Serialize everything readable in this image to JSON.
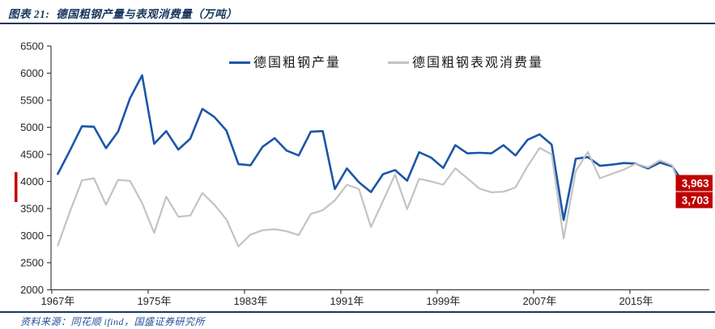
{
  "header": {
    "title": "图表 21:  德国粗钢产量与表观消费量（万吨）"
  },
  "footer": {
    "source": "资料来源：同花顺 ifind，国盛证券研究所"
  },
  "colors": {
    "title_blue": "#17375e",
    "rule_blue": "#17375e",
    "axis": "#404040",
    "tick_label": "#262626",
    "production_blue": "#1c56a8",
    "consumption_gray": "#c3c3c3",
    "end_label_bg": "#c00000",
    "end_label_text": "#ffffff",
    "accent_bar_red": "#c00000"
  },
  "chart_data": {
    "type": "line",
    "title": "德国粗钢产量与表观消费量（万吨）",
    "unit": "万吨",
    "grid": false,
    "legend_position": "top-center",
    "ylim": [
      2000,
      6500
    ],
    "y_ticks": [
      2000,
      2500,
      3000,
      3500,
      4000,
      4500,
      5000,
      5500,
      6000,
      6500
    ],
    "x_tick_years": [
      1967,
      1975,
      1983,
      1991,
      1999,
      2007,
      2015
    ],
    "x_tick_labels": [
      "1967年",
      "1975年",
      "1983年",
      "1991年",
      "1999年",
      "2007年",
      "2015年"
    ],
    "years": [
      1967,
      1968,
      1969,
      1970,
      1971,
      1972,
      1973,
      1974,
      1975,
      1976,
      1977,
      1978,
      1979,
      1980,
      1981,
      1982,
      1983,
      1984,
      1985,
      1986,
      1987,
      1988,
      1989,
      1990,
      1991,
      1992,
      1993,
      1994,
      1995,
      1996,
      1997,
      1998,
      1999,
      2000,
      2001,
      2002,
      2003,
      2004,
      2005,
      2006,
      2007,
      2008,
      2009,
      2010,
      2011,
      2012,
      2013,
      2014,
      2015,
      2016,
      2017,
      2018,
      2019
    ],
    "series": [
      {
        "id": "production",
        "name": "德国粗钢产量",
        "color": "#1c56a8",
        "width": 2.6,
        "values": [
          4140,
          4570,
          5020,
          5010,
          4615,
          4920,
          5540,
          5960,
          4695,
          4930,
          4590,
          4790,
          5340,
          5190,
          4940,
          4320,
          4300,
          4640,
          4800,
          4570,
          4480,
          4920,
          4930,
          3860,
          4240,
          3985,
          3805,
          4135,
          4210,
          4015,
          4540,
          4440,
          4250,
          4670,
          4520,
          4530,
          4520,
          4670,
          4480,
          4770,
          4870,
          4680,
          3290,
          4420,
          4450,
          4290,
          4310,
          4340,
          4330,
          4240,
          4350,
          4280,
          3963
        ]
      },
      {
        "id": "consumption",
        "name": "德国粗钢表观消费量",
        "color": "#c3c3c3",
        "width": 2.2,
        "values": [
          2820,
          3440,
          4020,
          4060,
          3570,
          4030,
          4010,
          3600,
          3050,
          3720,
          3350,
          3370,
          3790,
          3570,
          3300,
          2800,
          3020,
          3100,
          3120,
          3080,
          3010,
          3400,
          3470,
          3650,
          3940,
          3860,
          3160,
          3640,
          4130,
          3490,
          4050,
          4000,
          3940,
          4240,
          4060,
          3870,
          3800,
          3810,
          3890,
          4280,
          4620,
          4500,
          2950,
          4190,
          4545,
          4060,
          4140,
          4220,
          4330,
          4260,
          4390,
          4300,
          3703
        ]
      }
    ],
    "end_labels": [
      {
        "series": "production",
        "text": "3,963"
      },
      {
        "series": "consumption",
        "text": "3,703"
      }
    ]
  }
}
